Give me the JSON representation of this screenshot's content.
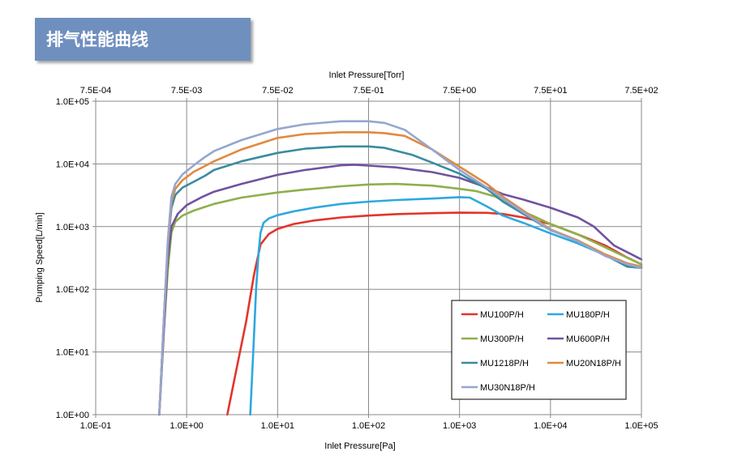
{
  "banner": {
    "title": "排气性能曲线"
  },
  "chart_data": {
    "type": "line",
    "title": "",
    "xlabel": "Inlet Pressure[Pa]",
    "x2label": "Inlet Pressure[Torr]",
    "ylabel": "Pumping Speed[L/min]",
    "xscale": "log",
    "yscale": "log",
    "xlim": [
      0.1,
      100000
    ],
    "ylim": [
      1,
      100000
    ],
    "x_ticks": [
      {
        "value": 0.1,
        "label": "1.0E-01"
      },
      {
        "value": 1,
        "label": "1.0E+00"
      },
      {
        "value": 10,
        "label": "1.0E+01"
      },
      {
        "value": 100,
        "label": "1.0E+02"
      },
      {
        "value": 1000,
        "label": "1.0E+03"
      },
      {
        "value": 10000,
        "label": "1.0E+04"
      },
      {
        "value": 100000,
        "label": "1.0E+05"
      }
    ],
    "x2_ticks": [
      {
        "value": 0.1,
        "label": "7.5E-04"
      },
      {
        "value": 1,
        "label": "7.5E-03"
      },
      {
        "value": 10,
        "label": "7.5E-02"
      },
      {
        "value": 100,
        "label": "7.5E-01"
      },
      {
        "value": 1000,
        "label": "7.5E+00"
      },
      {
        "value": 10000,
        "label": "7.5E+01"
      },
      {
        "value": 100000,
        "label": "7.5E+02"
      }
    ],
    "y_ticks": [
      {
        "value": 1,
        "label": "1.0E+00"
      },
      {
        "value": 10,
        "label": "1.0E+01"
      },
      {
        "value": 100,
        "label": "1.0E+02"
      },
      {
        "value": 1000,
        "label": "1.0E+03"
      },
      {
        "value": 10000,
        "label": "1.0E+04"
      },
      {
        "value": 100000,
        "label": "1.0E+05"
      }
    ],
    "grid": true,
    "legend_position": "bottom-right",
    "series": [
      {
        "name": "MU100P/H",
        "color": "#e3342c",
        "points": [
          [
            2.8,
            1
          ],
          [
            3.5,
            5
          ],
          [
            4.5,
            30
          ],
          [
            5.5,
            170
          ],
          [
            6.5,
            520
          ],
          [
            8,
            760
          ],
          [
            10,
            920
          ],
          [
            15,
            1100
          ],
          [
            25,
            1250
          ],
          [
            50,
            1400
          ],
          [
            100,
            1500
          ],
          [
            200,
            1580
          ],
          [
            500,
            1640
          ],
          [
            1000,
            1670
          ],
          [
            2000,
            1660
          ],
          [
            3000,
            1590
          ],
          [
            5000,
            1400
          ],
          [
            10000,
            1100
          ],
          [
            20000,
            750
          ],
          [
            40000,
            500
          ],
          [
            70000,
            320
          ],
          [
            100000,
            250
          ]
        ]
      },
      {
        "name": "MU180P/H",
        "color": "#2ea8de",
        "points": [
          [
            5,
            1
          ],
          [
            5.4,
            10
          ],
          [
            5.8,
            100
          ],
          [
            6.2,
            400
          ],
          [
            6.5,
            800
          ],
          [
            7,
            1150
          ],
          [
            8,
            1350
          ],
          [
            10,
            1520
          ],
          [
            15,
            1750
          ],
          [
            25,
            2000
          ],
          [
            50,
            2300
          ],
          [
            100,
            2500
          ],
          [
            200,
            2650
          ],
          [
            500,
            2800
          ],
          [
            1000,
            2950
          ],
          [
            1300,
            2900
          ],
          [
            2000,
            2100
          ],
          [
            3000,
            1500
          ],
          [
            5000,
            1150
          ],
          [
            10000,
            780
          ],
          [
            20000,
            540
          ],
          [
            40000,
            350
          ],
          [
            70000,
            230
          ],
          [
            100000,
            220
          ]
        ]
      },
      {
        "name": "MU300P/H",
        "color": "#8db04b",
        "points": [
          [
            0.5,
            1
          ],
          [
            0.56,
            20
          ],
          [
            0.62,
            200
          ],
          [
            0.68,
            800
          ],
          [
            0.75,
            1200
          ],
          [
            0.9,
            1500
          ],
          [
            1.2,
            1800
          ],
          [
            2,
            2300
          ],
          [
            4,
            2900
          ],
          [
            10,
            3500
          ],
          [
            20,
            3900
          ],
          [
            50,
            4400
          ],
          [
            100,
            4700
          ],
          [
            200,
            4800
          ],
          [
            500,
            4500
          ],
          [
            1000,
            4000
          ],
          [
            1500,
            3700
          ],
          [
            2500,
            3000
          ],
          [
            4000,
            2000
          ],
          [
            7000,
            1400
          ],
          [
            10000,
            1100
          ],
          [
            20000,
            750
          ],
          [
            50000,
            400
          ],
          [
            100000,
            250
          ]
        ]
      },
      {
        "name": "MU600P/H",
        "color": "#7052a0",
        "points": [
          [
            0.5,
            1
          ],
          [
            0.56,
            20
          ],
          [
            0.62,
            300
          ],
          [
            0.68,
            1000
          ],
          [
            0.8,
            1600
          ],
          [
            1,
            2200
          ],
          [
            1.5,
            3000
          ],
          [
            2,
            3600
          ],
          [
            4,
            4800
          ],
          [
            10,
            6700
          ],
          [
            20,
            8000
          ],
          [
            50,
            9500
          ],
          [
            70,
            9700
          ],
          [
            100,
            9400
          ],
          [
            200,
            8800
          ],
          [
            500,
            7400
          ],
          [
            1000,
            6000
          ],
          [
            2000,
            4200
          ],
          [
            3000,
            3300
          ],
          [
            5000,
            2700
          ],
          [
            10000,
            2000
          ],
          [
            20000,
            1400
          ],
          [
            30000,
            1000
          ],
          [
            50000,
            500
          ],
          [
            100000,
            300
          ]
        ]
      },
      {
        "name": "MU1218P/H",
        "color": "#3a8ca0",
        "points": [
          [
            0.5,
            1
          ],
          [
            0.56,
            30
          ],
          [
            0.62,
            500
          ],
          [
            0.68,
            2000
          ],
          [
            0.75,
            3200
          ],
          [
            0.9,
            4200
          ],
          [
            1.2,
            5200
          ],
          [
            1.6,
            6500
          ],
          [
            2,
            8000
          ],
          [
            4,
            11000
          ],
          [
            10,
            15000
          ],
          [
            20,
            17500
          ],
          [
            50,
            19000
          ],
          [
            100,
            19000
          ],
          [
            150,
            18000
          ],
          [
            300,
            14000
          ],
          [
            500,
            10500
          ],
          [
            1000,
            7000
          ],
          [
            2000,
            4000
          ],
          [
            3000,
            2500
          ],
          [
            5000,
            1600
          ],
          [
            10000,
            880
          ],
          [
            20000,
            600
          ],
          [
            40000,
            350
          ],
          [
            70000,
            230
          ],
          [
            100000,
            220
          ]
        ]
      },
      {
        "name": "MU20N18P/H",
        "color": "#e08a3e",
        "points": [
          [
            0.5,
            1
          ],
          [
            0.56,
            30
          ],
          [
            0.62,
            500
          ],
          [
            0.68,
            2500
          ],
          [
            0.75,
            4000
          ],
          [
            0.9,
            5500
          ],
          [
            1.2,
            7500
          ],
          [
            2,
            11000
          ],
          [
            4,
            17000
          ],
          [
            10,
            26000
          ],
          [
            20,
            30000
          ],
          [
            50,
            32000
          ],
          [
            100,
            32000
          ],
          [
            150,
            31000
          ],
          [
            250,
            28000
          ],
          [
            500,
            17000
          ],
          [
            1000,
            9000
          ],
          [
            2000,
            4800
          ],
          [
            3000,
            3000
          ],
          [
            5000,
            1800
          ],
          [
            10000,
            900
          ],
          [
            20000,
            600
          ],
          [
            40000,
            360
          ],
          [
            70000,
            260
          ],
          [
            100000,
            230
          ]
        ]
      },
      {
        "name": "MU30N18P/H",
        "color": "#95a6cf",
        "points": [
          [
            0.5,
            1
          ],
          [
            0.56,
            30
          ],
          [
            0.62,
            600
          ],
          [
            0.68,
            3000
          ],
          [
            0.75,
            4800
          ],
          [
            0.9,
            6800
          ],
          [
            1.2,
            9500
          ],
          [
            1.6,
            13000
          ],
          [
            2,
            16000
          ],
          [
            4,
            24000
          ],
          [
            10,
            36000
          ],
          [
            20,
            43000
          ],
          [
            50,
            48000
          ],
          [
            100,
            48000
          ],
          [
            150,
            45000
          ],
          [
            250,
            35000
          ],
          [
            500,
            17000
          ],
          [
            1000,
            8000
          ],
          [
            2000,
            4200
          ],
          [
            3000,
            2800
          ],
          [
            5000,
            1700
          ],
          [
            10000,
            880
          ],
          [
            20000,
            580
          ],
          [
            40000,
            340
          ],
          [
            70000,
            250
          ],
          [
            100000,
            220
          ]
        ]
      }
    ]
  }
}
